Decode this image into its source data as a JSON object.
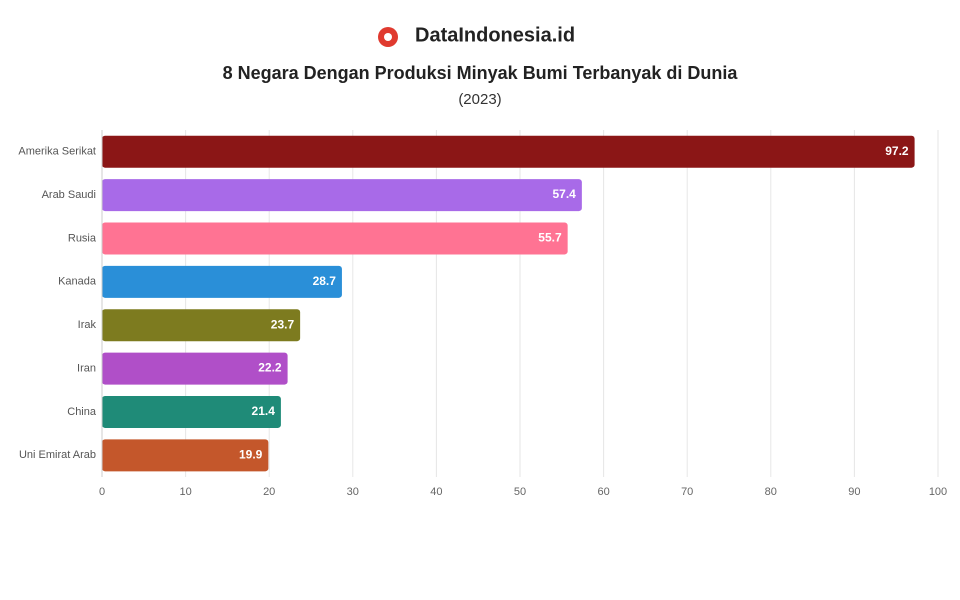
{
  "brand": "DataIndonesia.id",
  "chart_data": {
    "type": "bar",
    "orientation": "horizontal",
    "title": "8 Negara Dengan Produksi Minyak Bumi Terbanyak di Dunia",
    "subtitle": "(2023)",
    "categories": [
      "Amerika Serikat",
      "Arab Saudi",
      "Rusia",
      "Kanada",
      "Irak",
      "Iran",
      "China",
      "Uni Emirat Arab"
    ],
    "values": [
      97.2,
      57.4,
      55.7,
      28.7,
      23.7,
      22.2,
      21.4,
      19.9
    ],
    "colors": [
      "#8b1616",
      "#a86ae8",
      "#ff7393",
      "#2a8fd8",
      "#7d7b1f",
      "#b04fc8",
      "#1f8b78",
      "#c4572b"
    ],
    "xlim": [
      0,
      100
    ],
    "xticks": [
      0,
      10,
      20,
      30,
      40,
      50,
      60,
      70,
      80,
      90,
      100
    ],
    "grid": true
  }
}
